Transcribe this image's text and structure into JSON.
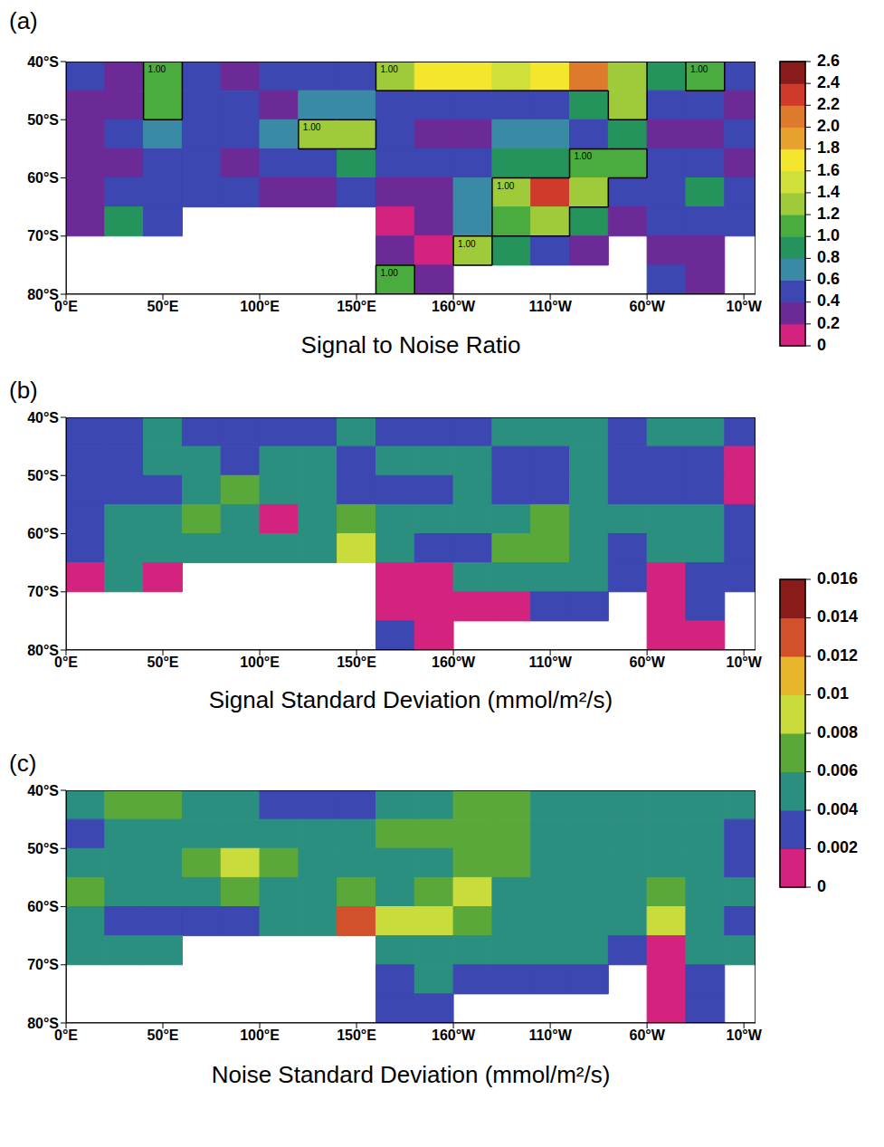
{
  "chart_data": [
    {
      "type": "heatmap",
      "label": "(a)",
      "title": "Signal to Noise Ratio",
      "xlim": [
        0,
        356
      ],
      "ylim": [
        -80,
        -40
      ],
      "xticks": [
        {
          "value": 0,
          "label": "0°E"
        },
        {
          "value": 50,
          "label": "50°E"
        },
        {
          "value": 100,
          "label": "100°E"
        },
        {
          "value": 150,
          "label": "150°E"
        },
        {
          "value": 200,
          "label": "160°W"
        },
        {
          "value": 250,
          "label": "110°W"
        },
        {
          "value": 300,
          "label": "60°W"
        },
        {
          "value": 350,
          "label": "10°W"
        }
      ],
      "yticks": [
        {
          "value": -80,
          "label": "80°S"
        },
        {
          "value": -70,
          "label": "70°S"
        },
        {
          "value": -60,
          "label": "60°S"
        },
        {
          "value": -50,
          "label": "50°S"
        },
        {
          "value": -40,
          "label": "40°S"
        }
      ],
      "lon_edges": [
        0,
        20,
        40,
        60,
        80,
        100,
        120,
        140,
        160,
        180,
        200,
        220,
        240,
        260,
        280,
        300,
        320,
        340,
        360
      ],
      "lat_edges": [
        -40,
        -45,
        -50,
        -55,
        -60,
        -65,
        -70,
        -75,
        -80
      ],
      "cells": [
        [
          0.4,
          0.3,
          1.0,
          0.4,
          0.3,
          0.4,
          0.5,
          0.4,
          1.2,
          1.6,
          1.6,
          1.5,
          1.7,
          2.1,
          1.2,
          0.9,
          1.1,
          0.4
        ],
        [
          0.2,
          0.3,
          1.0,
          0.4,
          0.4,
          0.3,
          0.7,
          0.6,
          0.5,
          0.5,
          0.4,
          0.4,
          0.4,
          0.8,
          1.2,
          0.5,
          0.5,
          0.3
        ],
        [
          0.2,
          0.5,
          0.6,
          0.4,
          0.4,
          0.6,
          1.2,
          1.3,
          0.5,
          0.3,
          0.3,
          0.6,
          0.6,
          0.5,
          0.8,
          0.3,
          0.3,
          0.4
        ],
        [
          0.3,
          0.3,
          0.4,
          0.4,
          0.2,
          0.5,
          0.5,
          0.9,
          0.5,
          0.5,
          0.4,
          0.8,
          0.9,
          1.0,
          1.1,
          0.5,
          0.5,
          0.3
        ],
        [
          0.3,
          0.5,
          0.5,
          0.4,
          0.4,
          0.3,
          0.3,
          0.5,
          0.2,
          0.2,
          0.6,
          1.3,
          2.2,
          1.2,
          0.5,
          0.4,
          0.9,
          0.5
        ],
        [
          0.2,
          0.9,
          0.4,
          null,
          null,
          null,
          null,
          null,
          0.1,
          0.3,
          0.6,
          1.0,
          1.2,
          0.9,
          0.3,
          0.5,
          0.4,
          0.4
        ],
        [
          null,
          null,
          null,
          null,
          null,
          null,
          null,
          null,
          0.2,
          0.1,
          1.2,
          0.9,
          0.5,
          0.3,
          null,
          0.3,
          0.3,
          null
        ],
        [
          null,
          null,
          null,
          null,
          null,
          null,
          null,
          null,
          1.0,
          0.3,
          null,
          null,
          null,
          null,
          null,
          0.4,
          0.3,
          null
        ]
      ],
      "contour": {
        "value": 1,
        "label": "1.00"
      },
      "colorbar": {
        "range": [
          0,
          2.6
        ],
        "ticks": [
          0,
          0.2,
          0.4,
          0.6,
          0.8,
          {
            "value": 1,
            "label": "1.0"
          },
          1.2,
          1.4,
          1.6,
          1.8,
          {
            "value": 2,
            "label": "2.0"
          },
          2.2,
          2.4,
          2.6
        ],
        "colors": [
          "#d4237f",
          "#6b2a96",
          "#3c47b2",
          "#3a8aa6",
          "#25935c",
          "#4aab3f",
          "#9fcb3b",
          "#cfe03a",
          "#f3e62c",
          "#e6a22c",
          "#de7a2b",
          "#cf3b2b",
          "#8a1b1b"
        ]
      }
    },
    {
      "type": "heatmap",
      "label": "(b)",
      "title": "Signal Standard Deviation (mmol/m²/s)",
      "xlim": [
        0,
        356
      ],
      "ylim": [
        -80,
        -40
      ],
      "xticks": [
        {
          "value": 0,
          "label": "0°E"
        },
        {
          "value": 50,
          "label": "50°E"
        },
        {
          "value": 100,
          "label": "100°E"
        },
        {
          "value": 150,
          "label": "150°E"
        },
        {
          "value": 200,
          "label": "160°W"
        },
        {
          "value": 250,
          "label": "110°W"
        },
        {
          "value": 300,
          "label": "60°W"
        },
        {
          "value": 350,
          "label": "10°W"
        }
      ],
      "yticks": [
        {
          "value": -80,
          "label": "80°S"
        },
        {
          "value": -70,
          "label": "70°S"
        },
        {
          "value": -60,
          "label": "60°S"
        },
        {
          "value": -50,
          "label": "50°S"
        },
        {
          "value": -40,
          "label": "40°S"
        }
      ],
      "lon_edges": [
        0,
        20,
        40,
        60,
        80,
        100,
        120,
        140,
        160,
        180,
        200,
        220,
        240,
        260,
        280,
        300,
        320,
        340,
        360
      ],
      "lat_edges": [
        -40,
        -45,
        -50,
        -55,
        -60,
        -65,
        -70,
        -75,
        -80
      ],
      "cells": [
        [
          0.003,
          0.003,
          0.005,
          0.003,
          0.003,
          0.003,
          0.003,
          0.005,
          0.003,
          0.003,
          0.003,
          0.005,
          0.005,
          0.005,
          0.003,
          0.005,
          0.005,
          0.003
        ],
        [
          0.003,
          0.003,
          0.005,
          0.005,
          0.003,
          0.005,
          0.005,
          0.003,
          0.005,
          0.005,
          0.005,
          0.003,
          0.003,
          0.005,
          0.003,
          0.003,
          0.003,
          0.001
        ],
        [
          0.003,
          0.003,
          0.003,
          0.005,
          0.007,
          0.005,
          0.005,
          0.003,
          0.003,
          0.003,
          0.005,
          0.003,
          0.003,
          0.005,
          0.003,
          0.003,
          0.003,
          0.001
        ],
        [
          0.003,
          0.005,
          0.005,
          0.007,
          0.005,
          0.001,
          0.005,
          0.007,
          0.005,
          0.005,
          0.005,
          0.005,
          0.007,
          0.005,
          0.005,
          0.005,
          0.005,
          0.003
        ],
        [
          0.003,
          0.005,
          0.005,
          0.005,
          0.005,
          0.005,
          0.005,
          0.009,
          0.005,
          0.003,
          0.003,
          0.007,
          0.007,
          0.005,
          0.003,
          0.005,
          0.005,
          0.003
        ],
        [
          0.001,
          0.005,
          0.001,
          null,
          null,
          null,
          null,
          null,
          0.001,
          0.001,
          0.005,
          0.005,
          0.005,
          0.005,
          0.003,
          0.001,
          0.003,
          0.003
        ],
        [
          null,
          null,
          null,
          null,
          null,
          null,
          null,
          null,
          0.001,
          0.001,
          0.001,
          0.001,
          0.003,
          0.003,
          null,
          0.001,
          0.003,
          null
        ],
        [
          null,
          null,
          null,
          null,
          null,
          null,
          null,
          null,
          0.003,
          0.001,
          null,
          null,
          null,
          null,
          null,
          0.001,
          0.001,
          null
        ]
      ],
      "colorbar": {
        "range": [
          0,
          0.016
        ],
        "ticks": [
          0,
          0.002,
          0.004,
          0.006,
          0.008,
          0.01,
          0.012,
          0.014,
          0.016
        ],
        "colors": [
          "#d4237f",
          "#3c47b2",
          "#2b8f80",
          "#5ba83a",
          "#c9dc3b",
          "#e8b62b",
          "#d2502b",
          "#8a1b1b"
        ]
      }
    },
    {
      "type": "heatmap",
      "label": "(c)",
      "title": "Noise Standard Deviation (mmol/m²/s)",
      "xlim": [
        0,
        356
      ],
      "ylim": [
        -80,
        -40
      ],
      "xticks": [
        {
          "value": 0,
          "label": "0°E"
        },
        {
          "value": 50,
          "label": "50°E"
        },
        {
          "value": 100,
          "label": "100°E"
        },
        {
          "value": 150,
          "label": "150°E"
        },
        {
          "value": 200,
          "label": "160°W"
        },
        {
          "value": 250,
          "label": "110°W"
        },
        {
          "value": 300,
          "label": "60°W"
        },
        {
          "value": 350,
          "label": "10°W"
        }
      ],
      "yticks": [
        {
          "value": -80,
          "label": "80°S"
        },
        {
          "value": -70,
          "label": "70°S"
        },
        {
          "value": -60,
          "label": "60°S"
        },
        {
          "value": -50,
          "label": "50°S"
        },
        {
          "value": -40,
          "label": "40°S"
        }
      ],
      "lon_edges": [
        0,
        20,
        40,
        60,
        80,
        100,
        120,
        140,
        160,
        180,
        200,
        220,
        240,
        260,
        280,
        300,
        320,
        340,
        360
      ],
      "lat_edges": [
        -40,
        -45,
        -50,
        -55,
        -60,
        -65,
        -70,
        -75,
        -80
      ],
      "cells": [
        [
          0.005,
          0.007,
          0.007,
          0.005,
          0.005,
          0.003,
          0.003,
          0.003,
          0.005,
          0.005,
          0.007,
          0.007,
          0.005,
          0.005,
          0.005,
          0.005,
          0.005,
          0.005
        ],
        [
          0.003,
          0.005,
          0.005,
          0.005,
          0.005,
          0.005,
          0.005,
          0.005,
          0.007,
          0.007,
          0.007,
          0.007,
          0.005,
          0.005,
          0.005,
          0.005,
          0.005,
          0.003
        ],
        [
          0.005,
          0.005,
          0.005,
          0.007,
          0.009,
          0.007,
          0.005,
          0.005,
          0.005,
          0.005,
          0.007,
          0.007,
          0.005,
          0.005,
          0.005,
          0.005,
          0.005,
          0.003
        ],
        [
          0.007,
          0.005,
          0.005,
          0.005,
          0.007,
          0.005,
          0.005,
          0.007,
          0.005,
          0.007,
          0.009,
          0.005,
          0.005,
          0.005,
          0.005,
          0.007,
          0.005,
          0.005
        ],
        [
          0.005,
          0.003,
          0.003,
          0.003,
          0.003,
          0.005,
          0.005,
          0.013,
          0.009,
          0.009,
          0.007,
          0.005,
          0.005,
          0.005,
          0.005,
          0.009,
          0.005,
          0.003
        ],
        [
          0.005,
          0.005,
          0.005,
          null,
          null,
          null,
          null,
          null,
          0.005,
          0.005,
          0.005,
          0.005,
          0.005,
          0.005,
          0.003,
          0.001,
          0.005,
          0.005
        ],
        [
          null,
          null,
          null,
          null,
          null,
          null,
          null,
          null,
          0.003,
          0.005,
          0.003,
          0.003,
          0.003,
          0.003,
          null,
          0.001,
          0.003,
          null
        ],
        [
          null,
          null,
          null,
          null,
          null,
          null,
          null,
          null,
          0.003,
          0.003,
          null,
          null,
          null,
          null,
          null,
          0.001,
          0.003,
          null
        ]
      ]
    }
  ]
}
